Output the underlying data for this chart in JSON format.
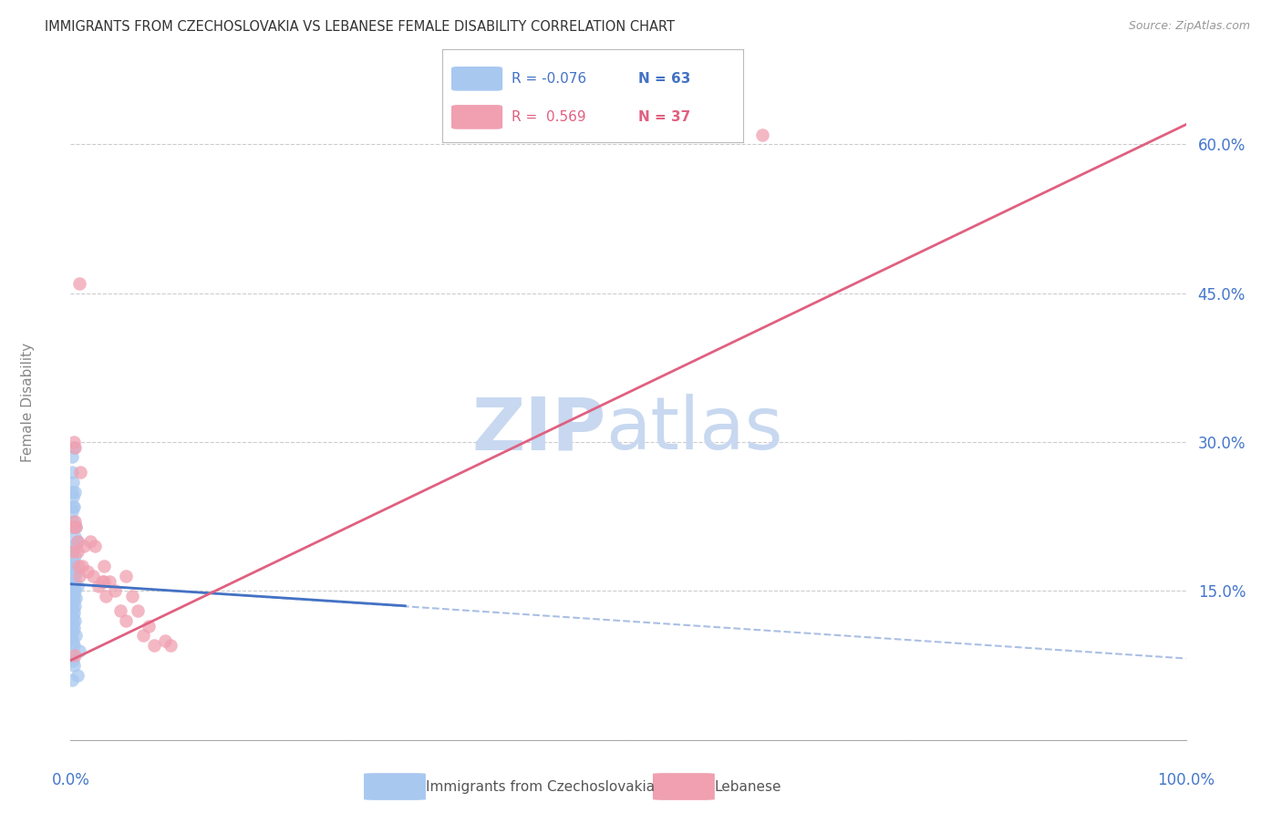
{
  "title": "IMMIGRANTS FROM CZECHOSLOVAKIA VS LEBANESE FEMALE DISABILITY CORRELATION CHART",
  "source": "Source: ZipAtlas.com",
  "ylabel": "Female Disability",
  "series1_label": "Immigrants from Czechoslovakia",
  "series2_label": "Lebanese",
  "series1_R": "-0.076",
  "series1_N": "63",
  "series2_R": "0.569",
  "series2_N": "37",
  "series1_color": "#A8C8F0",
  "series2_color": "#F0A0B0",
  "trend1_color": "#4472C4",
  "trend2_color": "#E06080",
  "watermark_zip_color": "#C8D8F0",
  "watermark_atlas_color": "#C8D8F0",
  "bg_color": "#FFFFFF",
  "grid_color": "#CCCCCC",
  "axis_color": "#4477CC",
  "tick_color": "#4477CC",
  "title_color": "#333333",
  "source_color": "#999999",
  "ylabel_color": "#888888",
  "right_ytick_vals": [
    0.15,
    0.3,
    0.45,
    0.6
  ],
  "right_ytick_labels": [
    "15.0%",
    "30.0%",
    "45.0%",
    "60.0%"
  ],
  "xmin": 0.0,
  "xmax": 1.0,
  "ymin": 0.0,
  "ymax": 0.68,
  "trend1_x0": 0.0,
  "trend1_y0": 0.157,
  "trend1_x1": 0.3,
  "trend1_y1": 0.135,
  "trend1_dash_x1": 1.0,
  "trend1_dash_y1": 0.082,
  "trend2_x0": 0.0,
  "trend2_y0": 0.08,
  "trend2_x1": 1.0,
  "trend2_y1": 0.62,
  "series1_x": [
    0.001,
    0.003,
    0.002,
    0.001,
    0.004,
    0.002,
    0.001,
    0.003,
    0.002,
    0.001,
    0.005,
    0.002,
    0.003,
    0.001,
    0.004,
    0.006,
    0.002,
    0.003,
    0.001,
    0.004,
    0.002,
    0.001,
    0.003,
    0.005,
    0.002,
    0.001,
    0.004,
    0.003,
    0.002,
    0.001,
    0.006,
    0.003,
    0.002,
    0.004,
    0.001,
    0.002,
    0.003,
    0.001,
    0.005,
    0.002,
    0.003,
    0.001,
    0.004,
    0.002,
    0.001,
    0.003,
    0.002,
    0.001,
    0.004,
    0.002,
    0.001,
    0.003,
    0.002,
    0.005,
    0.001,
    0.002,
    0.003,
    0.008,
    0.001,
    0.002,
    0.003,
    0.006,
    0.001
  ],
  "series1_y": [
    0.285,
    0.295,
    0.245,
    0.27,
    0.25,
    0.26,
    0.25,
    0.235,
    0.235,
    0.23,
    0.215,
    0.22,
    0.215,
    0.215,
    0.205,
    0.2,
    0.195,
    0.195,
    0.19,
    0.185,
    0.18,
    0.175,
    0.175,
    0.17,
    0.165,
    0.165,
    0.165,
    0.16,
    0.16,
    0.158,
    0.155,
    0.155,
    0.152,
    0.15,
    0.148,
    0.147,
    0.145,
    0.145,
    0.143,
    0.142,
    0.14,
    0.138,
    0.135,
    0.132,
    0.13,
    0.128,
    0.125,
    0.122,
    0.12,
    0.118,
    0.115,
    0.113,
    0.11,
    0.105,
    0.102,
    0.098,
    0.095,
    0.09,
    0.085,
    0.08,
    0.075,
    0.065,
    0.06
  ],
  "series2_x": [
    0.002,
    0.003,
    0.004,
    0.005,
    0.006,
    0.003,
    0.004,
    0.006,
    0.007,
    0.008,
    0.009,
    0.01,
    0.012,
    0.015,
    0.018,
    0.02,
    0.022,
    0.025,
    0.028,
    0.03,
    0.032,
    0.035,
    0.04,
    0.045,
    0.05,
    0.055,
    0.06,
    0.065,
    0.07,
    0.075,
    0.085,
    0.09,
    0.008,
    0.62,
    0.004,
    0.05,
    0.03
  ],
  "series2_y": [
    0.19,
    0.215,
    0.22,
    0.215,
    0.2,
    0.3,
    0.295,
    0.19,
    0.175,
    0.165,
    0.27,
    0.175,
    0.195,
    0.17,
    0.2,
    0.165,
    0.195,
    0.155,
    0.16,
    0.175,
    0.145,
    0.16,
    0.15,
    0.13,
    0.12,
    0.145,
    0.13,
    0.105,
    0.115,
    0.095,
    0.1,
    0.095,
    0.46,
    0.61,
    0.085,
    0.165,
    0.16
  ]
}
